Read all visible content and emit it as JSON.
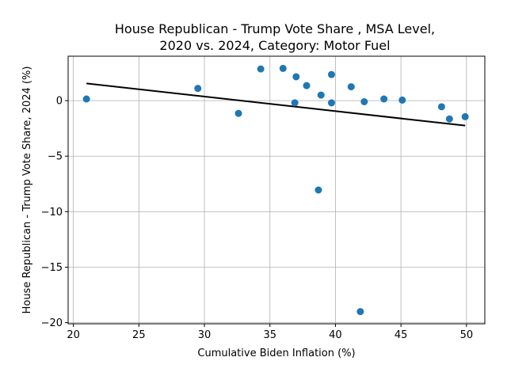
{
  "chart_data": {
    "type": "scatter",
    "title_lines": [
      "House Republican - Trump Vote Share , MSA Level,",
      "2020 vs. 2024, Category: Motor Fuel"
    ],
    "xlabel": "Cumulative Biden Inflation (%)",
    "ylabel": "House Republican - Trump Vote Share, 2024 (%)",
    "xlim": [
      19.6,
      51.4
    ],
    "ylim": [
      -20.1,
      4.0
    ],
    "xticks": [
      20,
      25,
      30,
      35,
      40,
      45,
      50
    ],
    "yticks": [
      0,
      -5,
      -10,
      -15,
      -20
    ],
    "xtick_labels": [
      "20",
      "25",
      "30",
      "35",
      "40",
      "45",
      "50"
    ],
    "ytick_labels": [
      "0",
      "−5",
      "−10",
      "−15",
      "−20"
    ],
    "grid": true,
    "point_color": "#1f77b4",
    "line_color": "#000000",
    "points": [
      {
        "x": 21.0,
        "y": 0.15
      },
      {
        "x": 29.5,
        "y": 1.1
      },
      {
        "x": 32.6,
        "y": -1.15
      },
      {
        "x": 34.3,
        "y": 2.85
      },
      {
        "x": 36.0,
        "y": 2.9
      },
      {
        "x": 36.9,
        "y": -0.2
      },
      {
        "x": 37.0,
        "y": 2.15
      },
      {
        "x": 37.8,
        "y": 1.35
      },
      {
        "x": 38.7,
        "y": -8.05
      },
      {
        "x": 38.9,
        "y": 0.5
      },
      {
        "x": 39.7,
        "y": 2.35
      },
      {
        "x": 39.7,
        "y": -0.2
      },
      {
        "x": 41.2,
        "y": 1.25
      },
      {
        "x": 41.9,
        "y": -19.0
      },
      {
        "x": 42.2,
        "y": -0.1
      },
      {
        "x": 43.7,
        "y": 0.15
      },
      {
        "x": 45.1,
        "y": 0.05
      },
      {
        "x": 48.1,
        "y": -0.55
      },
      {
        "x": 48.7,
        "y": -1.65
      },
      {
        "x": 49.9,
        "y": -1.45
      }
    ],
    "trend_line": {
      "x": [
        21.0,
        49.9
      ],
      "y": [
        1.55,
        -2.25
      ]
    }
  }
}
